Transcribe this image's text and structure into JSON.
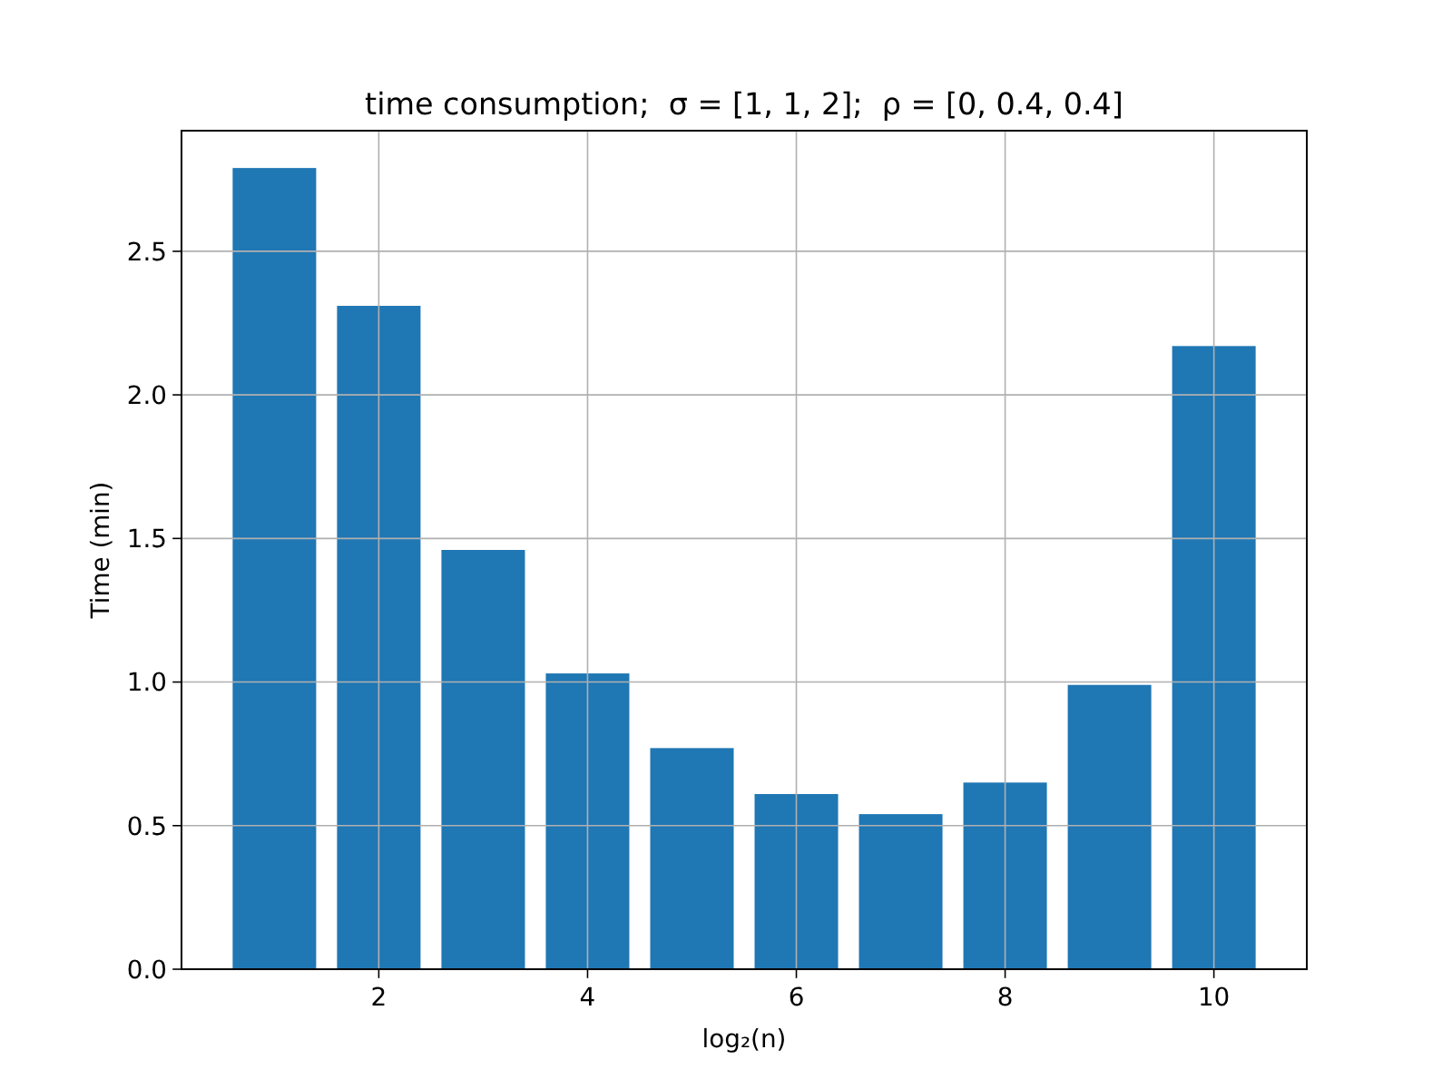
{
  "chart_data": {
    "type": "bar",
    "title": "time consumption;  σ = [1, 1, 2];  ρ = [0, 0.4, 0.4]",
    "xlabel": "log₂(n)",
    "ylabel": "Time (min)",
    "x": [
      1,
      2,
      3,
      4,
      5,
      6,
      7,
      8,
      9,
      10
    ],
    "values": [
      2.79,
      2.31,
      1.46,
      1.03,
      0.77,
      0.61,
      0.54,
      0.65,
      0.99,
      2.17
    ],
    "color": "#1f77b4",
    "xlim": [
      0.11,
      10.89
    ],
    "xticks": [
      2,
      4,
      6,
      8,
      10
    ],
    "ylim": [
      0,
      2.92
    ],
    "yticks": [
      {
        "value": 0,
        "label": "0.0"
      },
      {
        "value": 0.5,
        "label": "0.5"
      },
      {
        "value": 1,
        "label": "1.0"
      },
      {
        "value": 1.5,
        "label": "1.5"
      },
      {
        "value": 2,
        "label": "2.0"
      },
      {
        "value": 2.5,
        "label": "2.5"
      }
    ],
    "grid": true
  }
}
